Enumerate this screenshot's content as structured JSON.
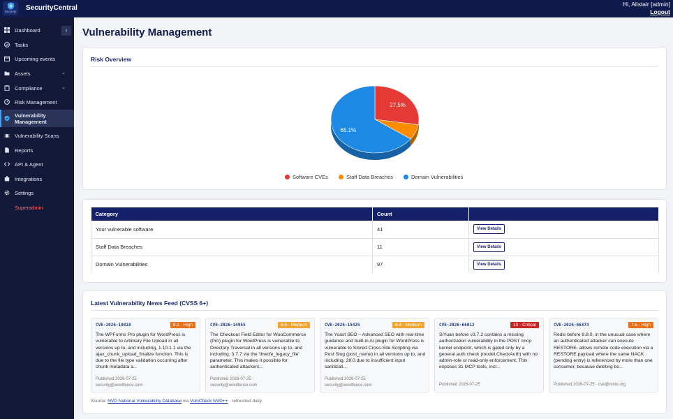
{
  "header": {
    "logo_text": "Security",
    "brand": "SecurityCentral",
    "greeting": "Hi, Alistair [admin]",
    "logout": "Logout"
  },
  "sidebar": {
    "collapse_glyph": "‹",
    "items": [
      {
        "label": "Dashboard",
        "icon": "dashboard-icon"
      },
      {
        "label": "Tasks",
        "icon": "check-circle-icon"
      },
      {
        "label": "Upcoming events",
        "icon": "calendar-icon"
      },
      {
        "label": "Assets",
        "icon": "folder-icon",
        "expandable": true
      },
      {
        "label": "Compliance",
        "icon": "clipboard-icon",
        "expandable": true
      },
      {
        "label": "Risk Management",
        "icon": "gauge-icon"
      },
      {
        "label": "Vulnerability Management",
        "icon": "shield-icon",
        "active": true
      },
      {
        "label": "Vulnerability Scans",
        "icon": "bug-icon"
      },
      {
        "label": "Reports",
        "icon": "document-icon"
      },
      {
        "label": "API & Agent",
        "icon": "code-icon"
      },
      {
        "label": "Integrations",
        "icon": "puzzle-icon"
      },
      {
        "label": "Settings",
        "icon": "gear-icon"
      },
      {
        "label": "Superadmin",
        "icon": "",
        "danger": true
      }
    ]
  },
  "page": {
    "title": "Vulnerability Management"
  },
  "risk_overview": {
    "title": "Risk Overview",
    "chart_data": {
      "type": "pie",
      "title": "",
      "categories": [
        "Software CVEs",
        "Staff Data Breaches",
        "Domain Vulnerabilities"
      ],
      "values": [
        41,
        11,
        97
      ],
      "percent_labels": [
        "27.5%",
        "",
        "65.1%"
      ],
      "colors": [
        "#e53935",
        "#fb8c00",
        "#1e88e5"
      ],
      "style": "3d",
      "legend_position": "bottom"
    }
  },
  "summary_table": {
    "headers": [
      "Category",
      "Count",
      ""
    ],
    "rows": [
      {
        "category": "Your vulnerable software",
        "count": "41",
        "action": "View Details"
      },
      {
        "category": "Staff Data Breaches",
        "count": "11",
        "action": "View Details"
      },
      {
        "category": "Domain Vulnerabilities",
        "count": "97",
        "action": "View Details"
      }
    ]
  },
  "news": {
    "title": "Latest Vulnerability News Feed (CVSS 6+)",
    "items": [
      {
        "cve": "CVE-2026-10818",
        "badge": "8.1 · High",
        "badge_color": "#e8711a",
        "desc": "The WPForms Pro plugin for WordPress is vulnerable to Arbitrary File Upload in all versions up to, and including, 1.10.1.1 via the ajax_chunk_upload_finalize function. This is due to the file type validation occurring after chunk metadata a...",
        "published": "Published 2026-07-25 ·",
        "source": "security@wordfence.com"
      },
      {
        "cve": "CVE-2026-14955",
        "badge": "6.5 · Medium",
        "badge_color": "#f2a533",
        "desc": "The Checkout Field Editor for WooCommerce (Pro) plugin for WordPress is vulnerable to Directory Traversal in all versions up to, and including, 3.7.7 via the 'thwcfe_legacy_file' parameter. This makes it possible for authenticated attackers...",
        "published": "Published 2026-07-25 ·",
        "source": "security@wordfence.com"
      },
      {
        "cve": "CVE-2026-15425",
        "badge": "6.4 · Medium",
        "badge_color": "#f2a533",
        "desc": "The Yoast SEO – Advanced SEO with real-time guidance and built-in AI plugin for WordPress is vulnerable to Stored Cross-Site Scripting via Post Slug (post_name) in all versions up to, and including, 28.0 due to insufficient input sanitizati...",
        "published": "Published 2026-07-25 ·",
        "source": "security@wordfence.com"
      },
      {
        "cve": "CVE-2026-66012",
        "badge": "10 · Critical",
        "badge_color": "#c62828",
        "desc": "SiYuan before v3.7.2 contains a missing authorization vulnerability in the POST /mcp kernel endpoint, which is gated only by a general auth check (model.CheckAuth) with no admin-role or read-only enforcement. This exposes 31 MCP tools, incl...",
        "published": "Published 2026-07-25",
        "source": ""
      },
      {
        "cve": "CVE-2026-66373",
        "badge": "7.5 · High",
        "badge_color": "#e8711a",
        "desc": "Redis before 8.8.0, in the unusual case where an authenticated attacker can execute RESTORE, allows remote code execution via a RESTORE payload where the same NACK (pending entry) is referenced by more than one consumer, because deleting bo...",
        "published": "Published 2026-07-25 · cve@mitre.org",
        "source": ""
      }
    ],
    "source_prefix": "Source:",
    "source_link1": "NVD National Vulnerability Database",
    "source_via": "via",
    "source_link2": "VulnCheck NVD++",
    "source_suffix": "· refreshed daily."
  }
}
